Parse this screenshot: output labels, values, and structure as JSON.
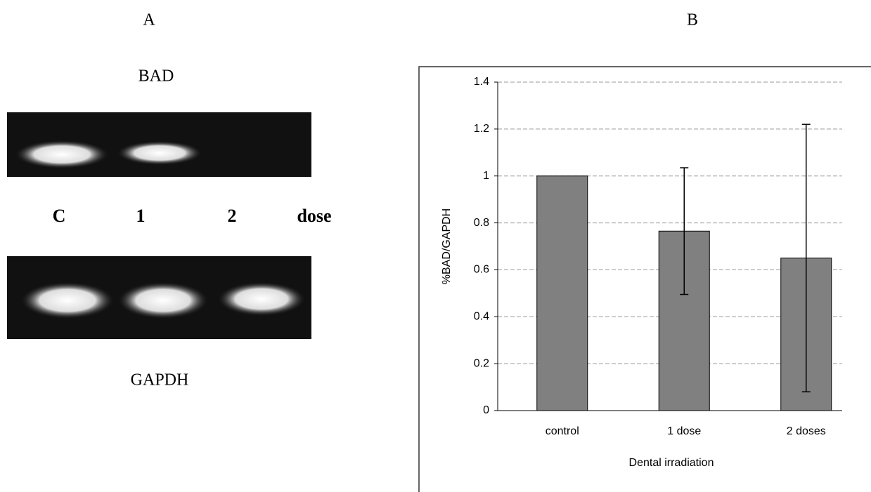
{
  "panels": {
    "a_label": "A",
    "b_label": "B"
  },
  "gel": {
    "top_label": "BAD",
    "bottom_label": "GAPDH",
    "lanes": [
      "C",
      "1",
      "2",
      "dose"
    ]
  },
  "chart_data": {
    "type": "bar",
    "categories": [
      "control",
      "1 dose",
      "2 doses"
    ],
    "values": [
      1,
      0.765,
      0.65
    ],
    "errors": [
      null,
      0.27,
      0.57
    ],
    "color": "#808080",
    "ylim": [
      0,
      1.4
    ],
    "yticks": [
      0,
      0.2,
      0.4,
      0.6,
      0.8,
      1,
      1.2,
      1.4
    ],
    "grid": true,
    "xlabel": "Dental irradiation",
    "ylabel": "%BAD/GAPDH"
  }
}
